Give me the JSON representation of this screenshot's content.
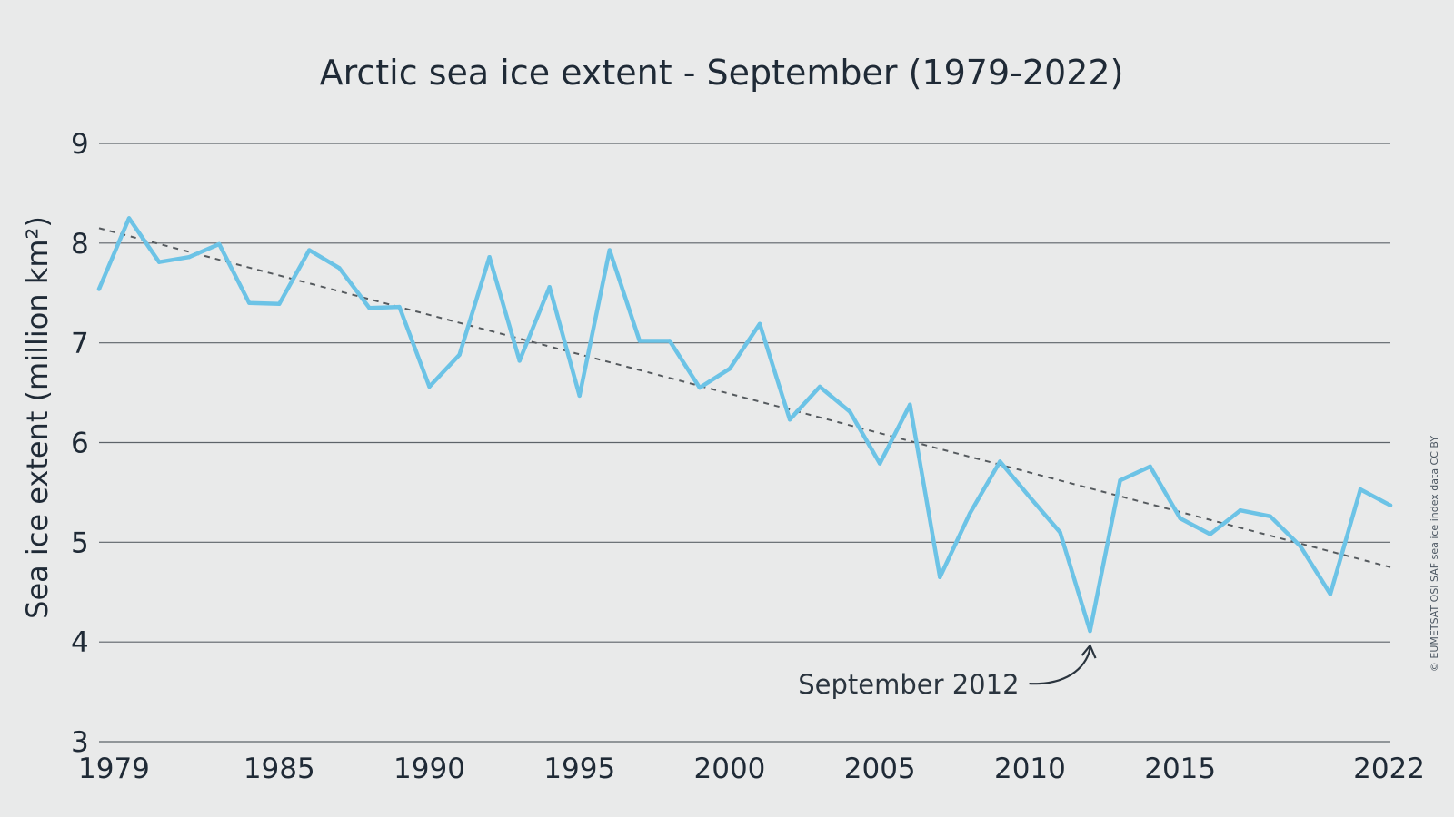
{
  "chart_data": {
    "type": "line",
    "title": "Arctic sea ice extent - September (1979-2022)",
    "xlabel": "",
    "ylabel": "Sea ice extent (million km²)",
    "xlim": [
      1979,
      2022
    ],
    "ylim": [
      3,
      9
    ],
    "yticks": [
      3,
      4,
      5,
      6,
      7,
      8,
      9
    ],
    "xticks": [
      1979,
      1985,
      1990,
      1995,
      2000,
      2005,
      2010,
      2015,
      2022
    ],
    "grid": "horizontal",
    "x": [
      1979,
      1980,
      1981,
      1982,
      1983,
      1984,
      1985,
      1986,
      1987,
      1988,
      1989,
      1990,
      1991,
      1992,
      1993,
      1994,
      1995,
      1996,
      1997,
      1998,
      1999,
      2000,
      2001,
      2002,
      2003,
      2004,
      2005,
      2006,
      2007,
      2008,
      2009,
      2010,
      2011,
      2012,
      2013,
      2014,
      2015,
      2016,
      2017,
      2018,
      2019,
      2020,
      2021,
      2022
    ],
    "series": [
      {
        "name": "",
        "color": "#6cc3e6",
        "values": [
          7.54,
          8.25,
          7.81,
          7.86,
          7.99,
          7.4,
          7.39,
          7.93,
          7.75,
          7.35,
          7.36,
          6.56,
          6.88,
          7.86,
          6.82,
          7.56,
          6.47,
          7.93,
          7.02,
          7.02,
          6.55,
          6.74,
          7.19,
          6.23,
          6.56,
          6.31,
          5.79,
          6.38,
          4.65,
          5.29,
          5.81,
          5.45,
          5.1,
          4.11,
          5.62,
          5.76,
          5.24,
          5.08,
          5.32,
          5.26,
          4.96,
          4.48,
          5.53,
          5.37
        ]
      },
      {
        "name": "",
        "style": "dashed",
        "color": "#555a5e",
        "trend_start": [
          1979,
          8.15
        ],
        "trend_end": [
          2022,
          4.75
        ]
      }
    ],
    "annotation": {
      "text": "September 2012",
      "x": 2012,
      "y": 4.11
    },
    "credit": "© EUMETSAT OSI SAF sea ice index data CC BY"
  }
}
